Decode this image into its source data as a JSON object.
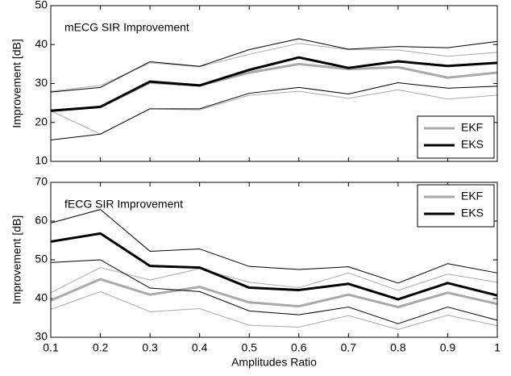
{
  "chart_data": [
    {
      "type": "line",
      "title": "mECG SIR Improvement",
      "ylabel": "Improvement [dB]",
      "x": [
        0.1,
        0.2,
        0.3,
        0.4,
        0.5,
        0.6,
        0.7,
        0.8,
        0.9,
        1
      ],
      "xlim": [
        0.1,
        1
      ],
      "xticks": [
        0.1,
        0.2,
        0.3,
        0.4,
        0.5,
        0.6,
        0.7,
        0.8,
        0.9,
        1
      ],
      "ylim": [
        10,
        50
      ],
      "yticks": [
        10,
        20,
        30,
        40,
        50
      ],
      "grid": false,
      "legend": "lower right",
      "series": [
        {
          "name": "EKF",
          "color": "#aaaaaa",
          "values": [
            23,
            24,
            30.2,
            29.5,
            32.8,
            35,
            33.7,
            34.2,
            31.5,
            32.8
          ],
          "upper": [
            28,
            29.5,
            35.3,
            34.3,
            37.5,
            40.3,
            38.7,
            38.6,
            37,
            38
          ],
          "lower": [
            23,
            17,
            23.5,
            23.2,
            27,
            28,
            26.2,
            28.4,
            26,
            27
          ]
        },
        {
          "name": "EKS",
          "color": "#000000",
          "values": [
            23,
            24,
            30.5,
            29.5,
            33.5,
            36.7,
            34,
            35.7,
            34.5,
            35.3
          ],
          "upper": [
            27.8,
            29,
            35.6,
            34.4,
            38.7,
            41.5,
            38.8,
            39.5,
            39.2,
            40.8
          ],
          "lower": [
            15.5,
            17,
            23.5,
            23.5,
            27.5,
            29,
            27.3,
            30.2,
            28.8,
            29.3
          ]
        }
      ]
    },
    {
      "type": "line",
      "title": "fECG SIR Improvement",
      "ylabel": "Improvement [dB]",
      "xlabel": "Amplitudes Ratio",
      "x": [
        0.1,
        0.2,
        0.3,
        0.4,
        0.5,
        0.6,
        0.7,
        0.8,
        0.9,
        1
      ],
      "xlim": [
        0.1,
        1
      ],
      "xticks": [
        0.1,
        0.2,
        0.3,
        0.4,
        0.5,
        0.6,
        0.7,
        0.8,
        0.9,
        1
      ],
      "ylim": [
        30,
        70
      ],
      "yticks": [
        30,
        40,
        50,
        60,
        70
      ],
      "grid": false,
      "legend": "upper right",
      "series": [
        {
          "name": "EKF",
          "color": "#aaaaaa",
          "values": [
            39.5,
            45,
            41,
            43,
            39,
            38,
            41,
            37.8,
            41.5,
            38.6
          ],
          "upper": [
            41.5,
            48,
            44.8,
            47.7,
            44.2,
            42.8,
            46.6,
            42.1,
            46.3,
            44.2
          ],
          "lower": [
            37.2,
            41.8,
            36.6,
            37.4,
            33.1,
            32.6,
            35.6,
            32,
            35.7,
            33
          ]
        },
        {
          "name": "EKS",
          "color": "#000000",
          "values": [
            54.7,
            56.8,
            48.4,
            48,
            42.8,
            42.2,
            43.8,
            39.8,
            44,
            40.8
          ],
          "upper": [
            59.5,
            63,
            52.2,
            52.8,
            48.3,
            47.5,
            48.2,
            44,
            49,
            46.6
          ],
          "lower": [
            49.3,
            50,
            42.7,
            41.8,
            36.8,
            35.8,
            37.8,
            33.5,
            37.8,
            34.4
          ]
        }
      ]
    }
  ]
}
